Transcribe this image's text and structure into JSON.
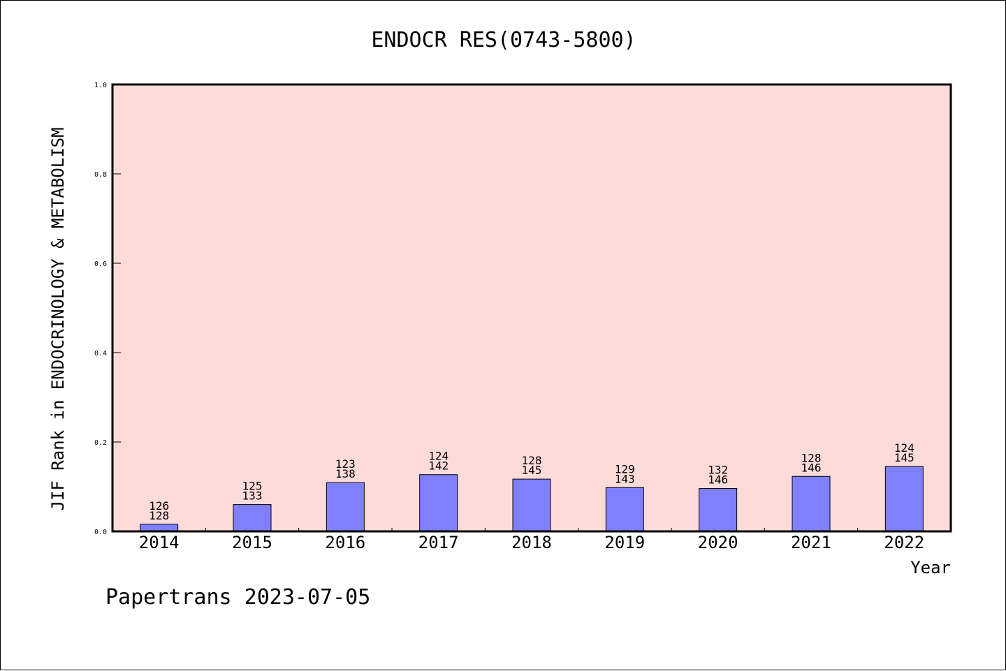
{
  "chart_data": {
    "type": "bar",
    "title": "ENDOCR RES(0743-5800)",
    "xlabel": "Year",
    "ylabel": "JIF Rank in ENDOCRINOLOGY & METABOLISM",
    "ylim": [
      0,
      1
    ],
    "yticks": [
      "0.0",
      "0.2",
      "0.4",
      "0.6",
      "0.8",
      "1.0"
    ],
    "categories": [
      "2014",
      "2015",
      "2016",
      "2017",
      "2018",
      "2019",
      "2020",
      "2021",
      "2022"
    ],
    "values": [
      0.016,
      0.06,
      0.109,
      0.127,
      0.117,
      0.098,
      0.096,
      0.123,
      0.145
    ],
    "rank": [
      "126",
      "125",
      "123",
      "124",
      "128",
      "129",
      "132",
      "128",
      "124"
    ],
    "total": [
      "128",
      "133",
      "138",
      "142",
      "145",
      "143",
      "146",
      "146",
      "145"
    ],
    "grid": false,
    "colors": {
      "plot_background": "#fddbd8",
      "bar_fill": "#8080ff",
      "bar_stroke": "#000000"
    }
  },
  "footer": "Papertrans 2023-07-05"
}
